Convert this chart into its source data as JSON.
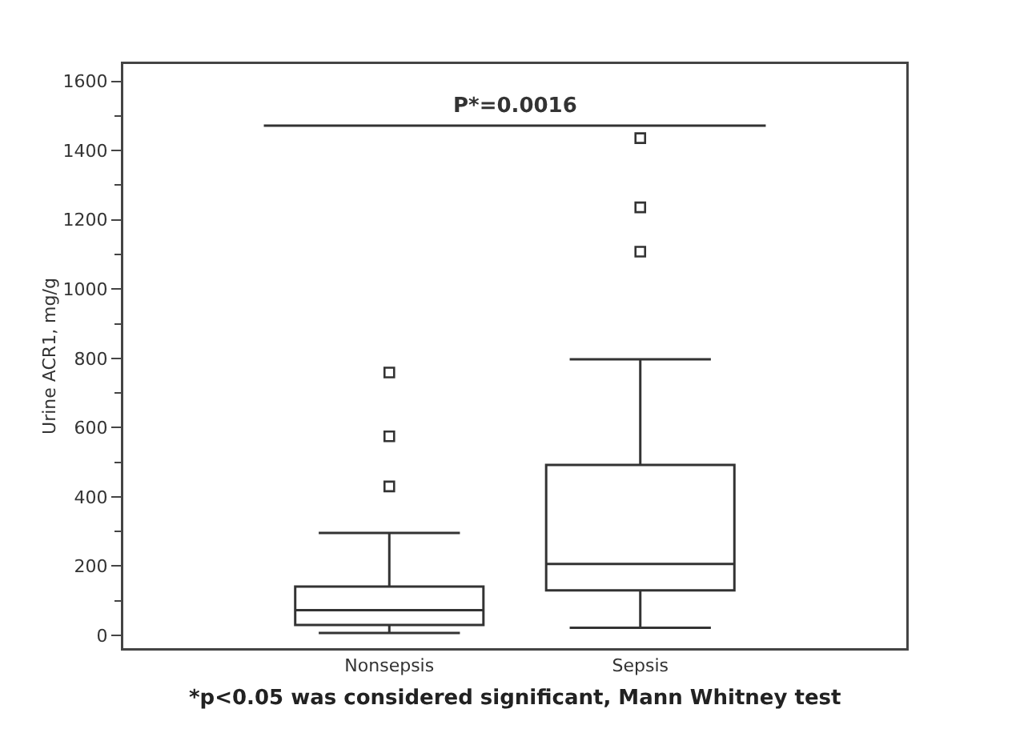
{
  "chart_data": {
    "type": "box",
    "ylabel": "Urine ACR1, mg/g",
    "categories": [
      "Nonsepsis",
      "Sepsis"
    ],
    "boxes": [
      {
        "low": 7,
        "q1": 30,
        "median": 73,
        "q3": 141,
        "high": 296,
        "outliers": [
          430,
          575,
          759
        ]
      },
      {
        "low": 22,
        "q1": 130,
        "median": 206,
        "q3": 492,
        "high": 797,
        "outliers": [
          1108,
          1236,
          1436
        ]
      }
    ],
    "color": "#333333",
    "ylim": [
      -37,
      1650
    ],
    "yticks": [
      0,
      200,
      400,
      600,
      800,
      1000,
      1200,
      1400,
      1600
    ],
    "annotations": [
      "P*=0.0016",
      "*p<0.05 was considered significant, Mann Whitney test"
    ]
  }
}
